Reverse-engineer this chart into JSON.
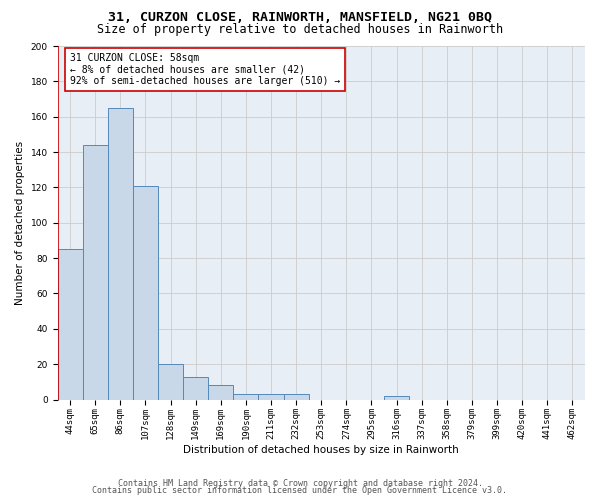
{
  "title1": "31, CURZON CLOSE, RAINWORTH, MANSFIELD, NG21 0BQ",
  "title2": "Size of property relative to detached houses in Rainworth",
  "xlabel": "Distribution of detached houses by size in Rainworth",
  "ylabel": "Number of detached properties",
  "footer1": "Contains HM Land Registry data © Crown copyright and database right 2024.",
  "footer2": "Contains public sector information licensed under the Open Government Licence v3.0.",
  "annotation_line1": "31 CURZON CLOSE: 58sqm",
  "annotation_line2": "← 8% of detached houses are smaller (42)",
  "annotation_line3": "92% of semi-detached houses are larger (510) →",
  "bar_values": [
    85,
    144,
    165,
    121,
    20,
    13,
    8,
    3,
    3,
    3,
    0,
    0,
    0,
    2,
    0,
    0,
    0,
    0,
    0,
    0,
    0
  ],
  "bin_labels": [
    "44sqm",
    "65sqm",
    "86sqm",
    "107sqm",
    "128sqm",
    "149sqm",
    "169sqm",
    "190sqm",
    "211sqm",
    "232sqm",
    "253sqm",
    "274sqm",
    "295sqm",
    "316sqm",
    "337sqm",
    "358sqm",
    "379sqm",
    "399sqm",
    "420sqm",
    "441sqm",
    "462sqm"
  ],
  "bar_color": "#c8d8e8",
  "bar_edge_color": "#5588bb",
  "vline_color": "#cc0000",
  "annotation_box_edge": "#cc0000",
  "ylim": [
    0,
    200
  ],
  "yticks": [
    0,
    20,
    40,
    60,
    80,
    100,
    120,
    140,
    160,
    180,
    200
  ],
  "bg_color": "#ffffff",
  "plot_bg_color": "#e8eef5",
  "grid_color": "#cccccc",
  "title_fontsize": 9.5,
  "subtitle_fontsize": 8.5,
  "axis_label_fontsize": 7.5,
  "tick_fontsize": 6.5,
  "annotation_fontsize": 7.0,
  "footer_fontsize": 6.0
}
